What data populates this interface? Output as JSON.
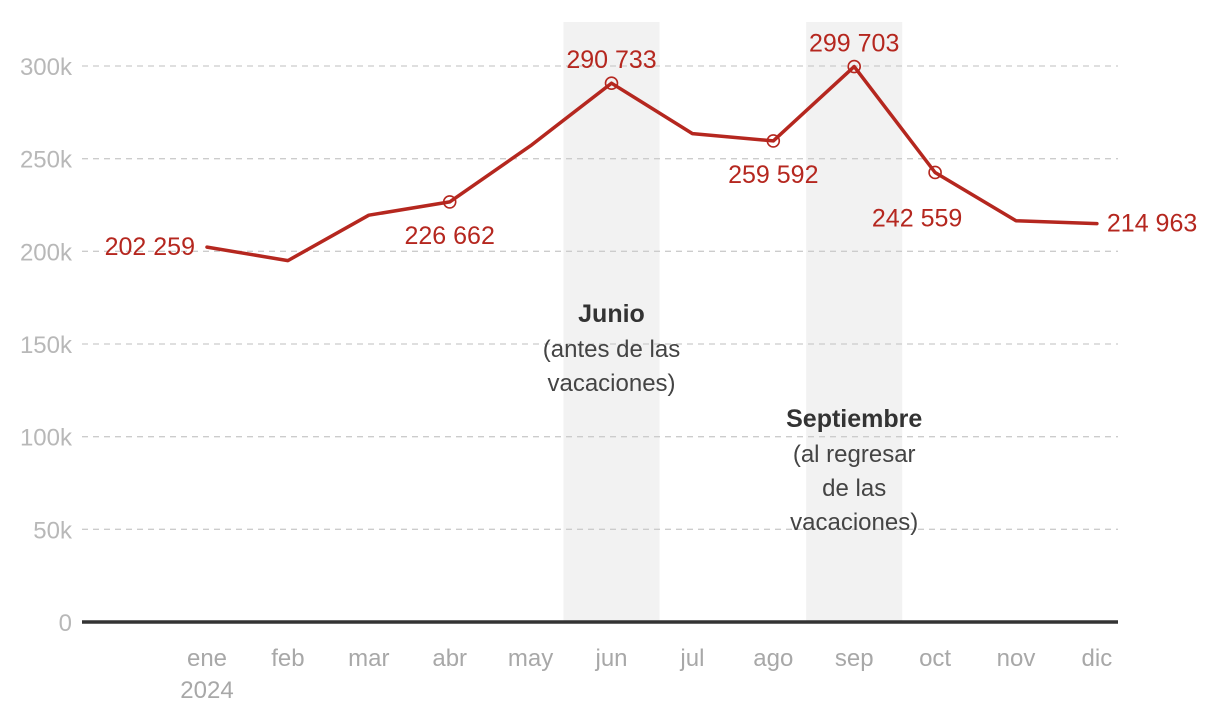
{
  "chart_data": {
    "type": "line",
    "categories": [
      "ene",
      "feb",
      "mar",
      "abr",
      "may",
      "jun",
      "jul",
      "ago",
      "sep",
      "oct",
      "nov",
      "dic"
    ],
    "year_label": "2024",
    "series": [
      {
        "color": "#b5271f",
        "values": [
          202259,
          195000,
          219500,
          226662,
          257000,
          290733,
          263500,
          259592,
          299703,
          242559,
          216500,
          214963
        ]
      }
    ],
    "data_labels": [
      {
        "index": 0,
        "text": "202 259",
        "marker": false
      },
      {
        "index": 3,
        "text": "226 662",
        "marker": true
      },
      {
        "index": 5,
        "text": "290 733",
        "marker": true
      },
      {
        "index": 7,
        "text": "259 592",
        "marker": true
      },
      {
        "index": 8,
        "text": "299 703",
        "marker": true
      },
      {
        "index": 9,
        "text": "242 559",
        "marker": true
      },
      {
        "index": 11,
        "text": "214 963",
        "marker": false
      }
    ],
    "y_ticks": [
      {
        "value": 0,
        "label": "0"
      },
      {
        "value": 50000,
        "label": "50k"
      },
      {
        "value": 100000,
        "label": "100k"
      },
      {
        "value": 150000,
        "label": "150k"
      },
      {
        "value": 200000,
        "label": "200k"
      },
      {
        "value": 250000,
        "label": "250k"
      },
      {
        "value": 300000,
        "label": "300k"
      }
    ],
    "ylim": [
      0,
      300000
    ],
    "grid": true,
    "highlight_bands": [
      {
        "index": 5,
        "title": "Junio",
        "lines": [
          "(antes de las",
          "vacaciones)"
        ]
      },
      {
        "index": 8,
        "title": "Septiembre",
        "lines": [
          "(al regresar",
          "de las",
          "vacaciones)"
        ]
      }
    ],
    "colors": {
      "line": "#b5271f",
      "band": "#f2f2f2",
      "grid": "#cccccc",
      "baseline": "#333333"
    }
  }
}
